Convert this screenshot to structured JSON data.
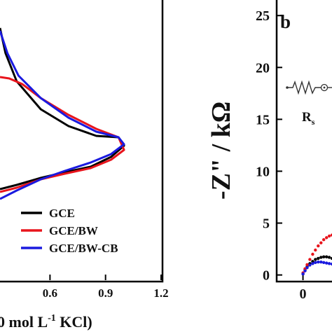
{
  "chart_data": [
    {
      "type": "line",
      "panel_label": "",
      "xlabel_fragment": "0 mol L",
      "xlabel_sup": "-1",
      "xlabel_tail": " KCl)",
      "x_ticks": [
        {
          "value": 0.6,
          "label": "0.6"
        },
        {
          "value": 0.9,
          "label": "0.9"
        },
        {
          "value": 1.2,
          "label": "1.2"
        }
      ],
      "xlim": [
        0.33,
        1.2
      ],
      "ylim": [
        -1,
        1
      ],
      "legend": {
        "placement": "bottom-right",
        "entries": [
          {
            "name": "GCE",
            "color": "#000000"
          },
          {
            "name": "GCE/BW",
            "color": "#e8141c"
          },
          {
            "name": "GCE/BW-CB",
            "color": "#1a1adf"
          }
        ]
      },
      "series": [
        {
          "name": "GCE",
          "color": "#000000",
          "points": [
            [
              0.33,
              0.8
            ],
            [
              0.36,
              0.62
            ],
            [
              0.42,
              0.42
            ],
            [
              0.55,
              0.22
            ],
            [
              0.7,
              0.1
            ],
            [
              0.85,
              0.03
            ],
            [
              0.97,
              0.02
            ],
            [
              1.0,
              -0.04
            ],
            [
              0.93,
              -0.12
            ],
            [
              0.82,
              -0.19
            ],
            [
              0.68,
              -0.23
            ],
            [
              0.55,
              -0.27
            ],
            [
              0.42,
              -0.32
            ],
            [
              0.33,
              -0.35
            ]
          ]
        },
        {
          "name": "GCE/BW",
          "color": "#e8141c",
          "points": [
            [
              0.33,
              0.45
            ],
            [
              0.38,
              0.44
            ],
            [
              0.45,
              0.4
            ],
            [
              0.55,
              0.3
            ],
            [
              0.7,
              0.18
            ],
            [
              0.85,
              0.08
            ],
            [
              0.97,
              0.02
            ],
            [
              1.0,
              -0.07
            ],
            [
              0.93,
              -0.14
            ],
            [
              0.82,
              -0.2
            ],
            [
              0.68,
              -0.24
            ],
            [
              0.55,
              -0.28
            ],
            [
              0.42,
              -0.34
            ],
            [
              0.33,
              -0.37
            ]
          ]
        },
        {
          "name": "GCE/BW-CB",
          "color": "#1a1adf",
          "points": [
            [
              0.33,
              0.78
            ],
            [
              0.37,
              0.62
            ],
            [
              0.43,
              0.46
            ],
            [
              0.55,
              0.3
            ],
            [
              0.7,
              0.16
            ],
            [
              0.85,
              0.06
            ],
            [
              0.97,
              0.02
            ],
            [
              1.0,
              -0.03
            ],
            [
              0.93,
              -0.1
            ],
            [
              0.82,
              -0.16
            ],
            [
              0.68,
              -0.22
            ],
            [
              0.55,
              -0.28
            ],
            [
              0.42,
              -0.36
            ],
            [
              0.33,
              -0.42
            ]
          ]
        }
      ]
    },
    {
      "type": "scatter",
      "panel_label": "b",
      "ylabel_text": "-Z\" / kΩ",
      "y_ticks": [
        {
          "value": 0,
          "label": "0"
        },
        {
          "value": 5,
          "label": "5"
        },
        {
          "value": 10,
          "label": "10"
        },
        {
          "value": 15,
          "label": "15"
        },
        {
          "value": 20,
          "label": "20"
        },
        {
          "value": 25,
          "label": "25"
        }
      ],
      "x_ticks": [
        {
          "value": 0,
          "label": "0"
        }
      ],
      "xlim": [
        -1.9,
        2.4
      ],
      "ylim": [
        -0.5,
        26.5
      ],
      "circuit_label": "R",
      "circuit_label_sub": "s",
      "series": [
        {
          "name": "GCE",
          "color": "#000000",
          "x": [
            0.0,
            0.15,
            0.3,
            0.5,
            0.7,
            0.9,
            1.1,
            1.3,
            1.5,
            1.7,
            1.9,
            2.1,
            2.3
          ],
          "y": [
            0.1,
            0.5,
            0.8,
            1.1,
            1.3,
            1.5,
            1.6,
            1.7,
            1.75,
            1.75,
            1.7,
            1.6,
            1.5
          ]
        },
        {
          "name": "GCE/BW",
          "color": "#e8141c",
          "x": [
            0.0,
            0.15,
            0.3,
            0.5,
            0.7,
            0.9,
            1.1,
            1.3,
            1.5,
            1.7,
            1.9,
            2.1,
            2.3
          ],
          "y": [
            0.2,
            0.6,
            1.0,
            1.5,
            2.0,
            2.4,
            2.8,
            3.1,
            3.4,
            3.6,
            3.75,
            3.85,
            3.9
          ]
        },
        {
          "name": "GCE/BW-CB",
          "color": "#1a1adf",
          "x": [
            0.0,
            0.15,
            0.3,
            0.5,
            0.7,
            0.9,
            1.1,
            1.3,
            1.5,
            1.7,
            1.9,
            2.1,
            2.3
          ],
          "y": [
            0.1,
            0.4,
            0.7,
            0.95,
            1.1,
            1.2,
            1.25,
            1.25,
            1.2,
            1.15,
            1.1,
            1.05,
            1.0
          ]
        }
      ]
    }
  ]
}
